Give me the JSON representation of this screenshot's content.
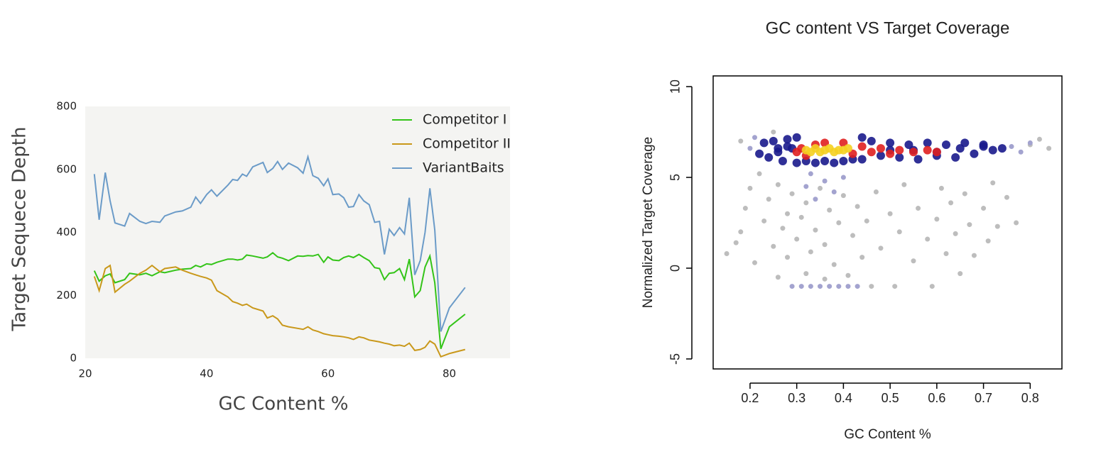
{
  "chart_data": [
    {
      "type": "line",
      "xlabel": "GC Content %",
      "ylabel": "Target Sequece Depth",
      "xlim": [
        20,
        90
      ],
      "xticks": [
        20,
        40,
        60,
        80
      ],
      "ylim": [
        0,
        800
      ],
      "yticks": [
        0,
        200,
        400,
        600,
        800
      ],
      "grid": false,
      "legend": "upper right",
      "background": "#f4f4f2",
      "x": [
        21.5,
        22.3,
        23.3,
        24.1,
        24.9,
        26.5,
        27.3,
        29,
        30,
        31,
        32.3,
        33.1,
        34.9,
        36,
        37.4,
        38.2,
        39,
        40,
        40.8,
        41.7,
        43.5,
        44.3,
        45.1,
        45.9,
        46.6,
        47.6,
        49.3,
        50,
        50.9,
        51.7,
        52.5,
        53.5,
        55,
        55.9,
        56.7,
        57.5,
        58.4,
        59.3,
        60,
        60.8,
        61.8,
        62.6,
        63.4,
        64.2,
        65.1,
        65.9,
        66.8,
        67.7,
        68.5,
        69.3,
        70.1,
        70.9,
        71.8,
        72.6,
        73.4,
        74.3,
        75.2,
        76,
        76.8,
        77.6,
        78.6,
        80,
        82.6
      ],
      "series": [
        {
          "name": "Competitor I",
          "color": "#33c418",
          "values": [
            278,
            245,
            262,
            268,
            240,
            250,
            270,
            265,
            270,
            262,
            275,
            272,
            280,
            283,
            285,
            295,
            290,
            300,
            298,
            305,
            315,
            315,
            312,
            315,
            328,
            325,
            318,
            322,
            335,
            322,
            318,
            310,
            325,
            324,
            326,
            325,
            330,
            305,
            322,
            312,
            310,
            320,
            325,
            320,
            330,
            320,
            310,
            288,
            285,
            250,
            270,
            272,
            285,
            250,
            315,
            195,
            215,
            290,
            325,
            240,
            30,
            100,
            140
          ]
        },
        {
          "name": "Competitor II",
          "color": "#c9981a",
          "values": [
            260,
            215,
            285,
            295,
            210,
            235,
            245,
            270,
            280,
            295,
            275,
            285,
            290,
            280,
            270,
            265,
            260,
            255,
            248,
            215,
            195,
            180,
            175,
            168,
            172,
            160,
            150,
            128,
            135,
            125,
            105,
            100,
            95,
            92,
            100,
            90,
            85,
            78,
            75,
            72,
            70,
            68,
            65,
            60,
            68,
            65,
            58,
            55,
            52,
            48,
            45,
            40,
            42,
            38,
            48,
            25,
            28,
            35,
            55,
            45,
            5,
            15,
            28
          ]
        },
        {
          "name": "VariantBaits",
          "color": "#6b9bc8",
          "values": [
            585,
            440,
            590,
            500,
            430,
            420,
            460,
            435,
            428,
            435,
            432,
            452,
            465,
            468,
            480,
            512,
            492,
            520,
            535,
            515,
            550,
            568,
            565,
            585,
            578,
            608,
            622,
            590,
            603,
            625,
            600,
            620,
            605,
            588,
            640,
            580,
            572,
            548,
            570,
            520,
            522,
            510,
            480,
            482,
            520,
            500,
            488,
            432,
            435,
            330,
            410,
            390,
            415,
            395,
            510,
            265,
            310,
            400,
            540,
            407,
            85,
            160,
            225
          ]
        }
      ]
    },
    {
      "type": "scatter",
      "title": "GC content VS Target Coverage",
      "xlabel": "GC Content %",
      "ylabel": "Normalized Target Coverage",
      "xlim": [
        0.121,
        0.868
      ],
      "xticks": [
        0.2,
        0.3,
        0.4,
        0.5,
        0.6,
        0.7,
        0.8
      ],
      "ylim": [
        -5.55,
        10.59
      ],
      "yticks": [
        -5,
        0,
        5,
        10
      ],
      "series": [
        {
          "color": "#bdbdbd",
          "x": [
            0.15,
            0.17,
            0.18,
            0.19,
            0.2,
            0.21,
            0.22,
            0.23,
            0.24,
            0.25,
            0.26,
            0.26,
            0.27,
            0.28,
            0.28,
            0.29,
            0.3,
            0.31,
            0.32,
            0.32,
            0.33,
            0.34,
            0.35,
            0.36,
            0.36,
            0.37,
            0.38,
            0.39,
            0.4,
            0.41,
            0.42,
            0.43,
            0.44,
            0.45,
            0.46,
            0.47,
            0.48,
            0.5,
            0.51,
            0.52,
            0.53,
            0.55,
            0.56,
            0.58,
            0.59,
            0.6,
            0.61,
            0.62,
            0.63,
            0.64,
            0.65,
            0.66,
            0.67,
            0.68,
            0.7,
            0.71,
            0.72,
            0.73,
            0.75,
            0.77,
            0.18,
            0.8,
            0.84,
            0.82,
            0.25
          ],
          "y": [
            0.8,
            1.4,
            2,
            3.3,
            4.4,
            0.3,
            5.2,
            2.6,
            3.8,
            1.2,
            4.6,
            -0.5,
            2.2,
            3.0,
            0.6,
            4.1,
            1.6,
            2.8,
            -0.3,
            3.6,
            0.9,
            2.1,
            4.4,
            -0.6,
            1.3,
            3.2,
            0.2,
            2.5,
            4.0,
            -0.4,
            1.8,
            3.4,
            0.6,
            2.6,
            -1,
            4.2,
            1.1,
            3.0,
            -1,
            2.0,
            4.6,
            0.4,
            3.3,
            1.6,
            -1,
            2.7,
            4.4,
            0.8,
            3.6,
            1.9,
            -0.3,
            4.1,
            2.4,
            0.7,
            3.3,
            1.5,
            4.7,
            2.3,
            3.9,
            2.5,
            7.0,
            6.8,
            6.6,
            7.1,
            7.5
          ]
        },
        {
          "color": "#a3a3cf",
          "x": [
            0.29,
            0.31,
            0.33,
            0.35,
            0.37,
            0.39,
            0.41,
            0.43,
            0.32,
            0.34,
            0.36,
            0.38,
            0.33,
            0.4,
            0.2,
            0.21,
            0.76,
            0.78,
            0.8
          ],
          "y": [
            -1,
            -1,
            -1,
            -1,
            -1,
            -1,
            -1,
            -1,
            4.5,
            3.8,
            4.8,
            4.2,
            5.2,
            5.0,
            6.6,
            7.2,
            6.7,
            6.4,
            6.9
          ]
        },
        {
          "color": "#1a1a8c",
          "x": [
            0.22,
            0.23,
            0.24,
            0.25,
            0.26,
            0.27,
            0.28,
            0.29,
            0.3,
            0.44,
            0.46,
            0.48,
            0.5,
            0.52,
            0.54,
            0.56,
            0.58,
            0.6,
            0.62,
            0.64,
            0.66,
            0.68,
            0.7,
            0.72,
            0.74,
            0.3,
            0.32,
            0.34,
            0.36,
            0.38,
            0.4,
            0.42,
            0.44,
            0.26,
            0.28,
            0.5,
            0.55,
            0.6,
            0.65,
            0.7
          ],
          "y": [
            6.3,
            6.9,
            6.1,
            7.0,
            6.4,
            5.9,
            7.1,
            6.6,
            7.2,
            6.0,
            7.0,
            6.2,
            6.9,
            6.1,
            6.8,
            6.0,
            6.9,
            6.2,
            6.8,
            6.1,
            6.9,
            6.3,
            6.7,
            6.5,
            6.6,
            5.8,
            5.9,
            5.8,
            5.9,
            5.8,
            5.9,
            6.0,
            7.2,
            6.6,
            6.7,
            6.5,
            6.5,
            6.4,
            6.6,
            6.8
          ]
        },
        {
          "color": "#e02020",
          "x": [
            0.3,
            0.32,
            0.34,
            0.42,
            0.44,
            0.46,
            0.48,
            0.5,
            0.52,
            0.55,
            0.58,
            0.6,
            0.31,
            0.36,
            0.4
          ],
          "y": [
            6.4,
            6.2,
            6.8,
            6.3,
            6.7,
            6.4,
            6.6,
            6.3,
            6.5,
            6.4,
            6.5,
            6.4,
            6.6,
            6.9,
            6.9
          ]
        },
        {
          "color": "#f5d020",
          "x": [
            0.32,
            0.34,
            0.35,
            0.36,
            0.37,
            0.38,
            0.39,
            0.4,
            0.33,
            0.41
          ],
          "y": [
            6.5,
            6.6,
            6.4,
            6.5,
            6.6,
            6.4,
            6.5,
            6.5,
            6.4,
            6.6
          ]
        }
      ]
    }
  ]
}
